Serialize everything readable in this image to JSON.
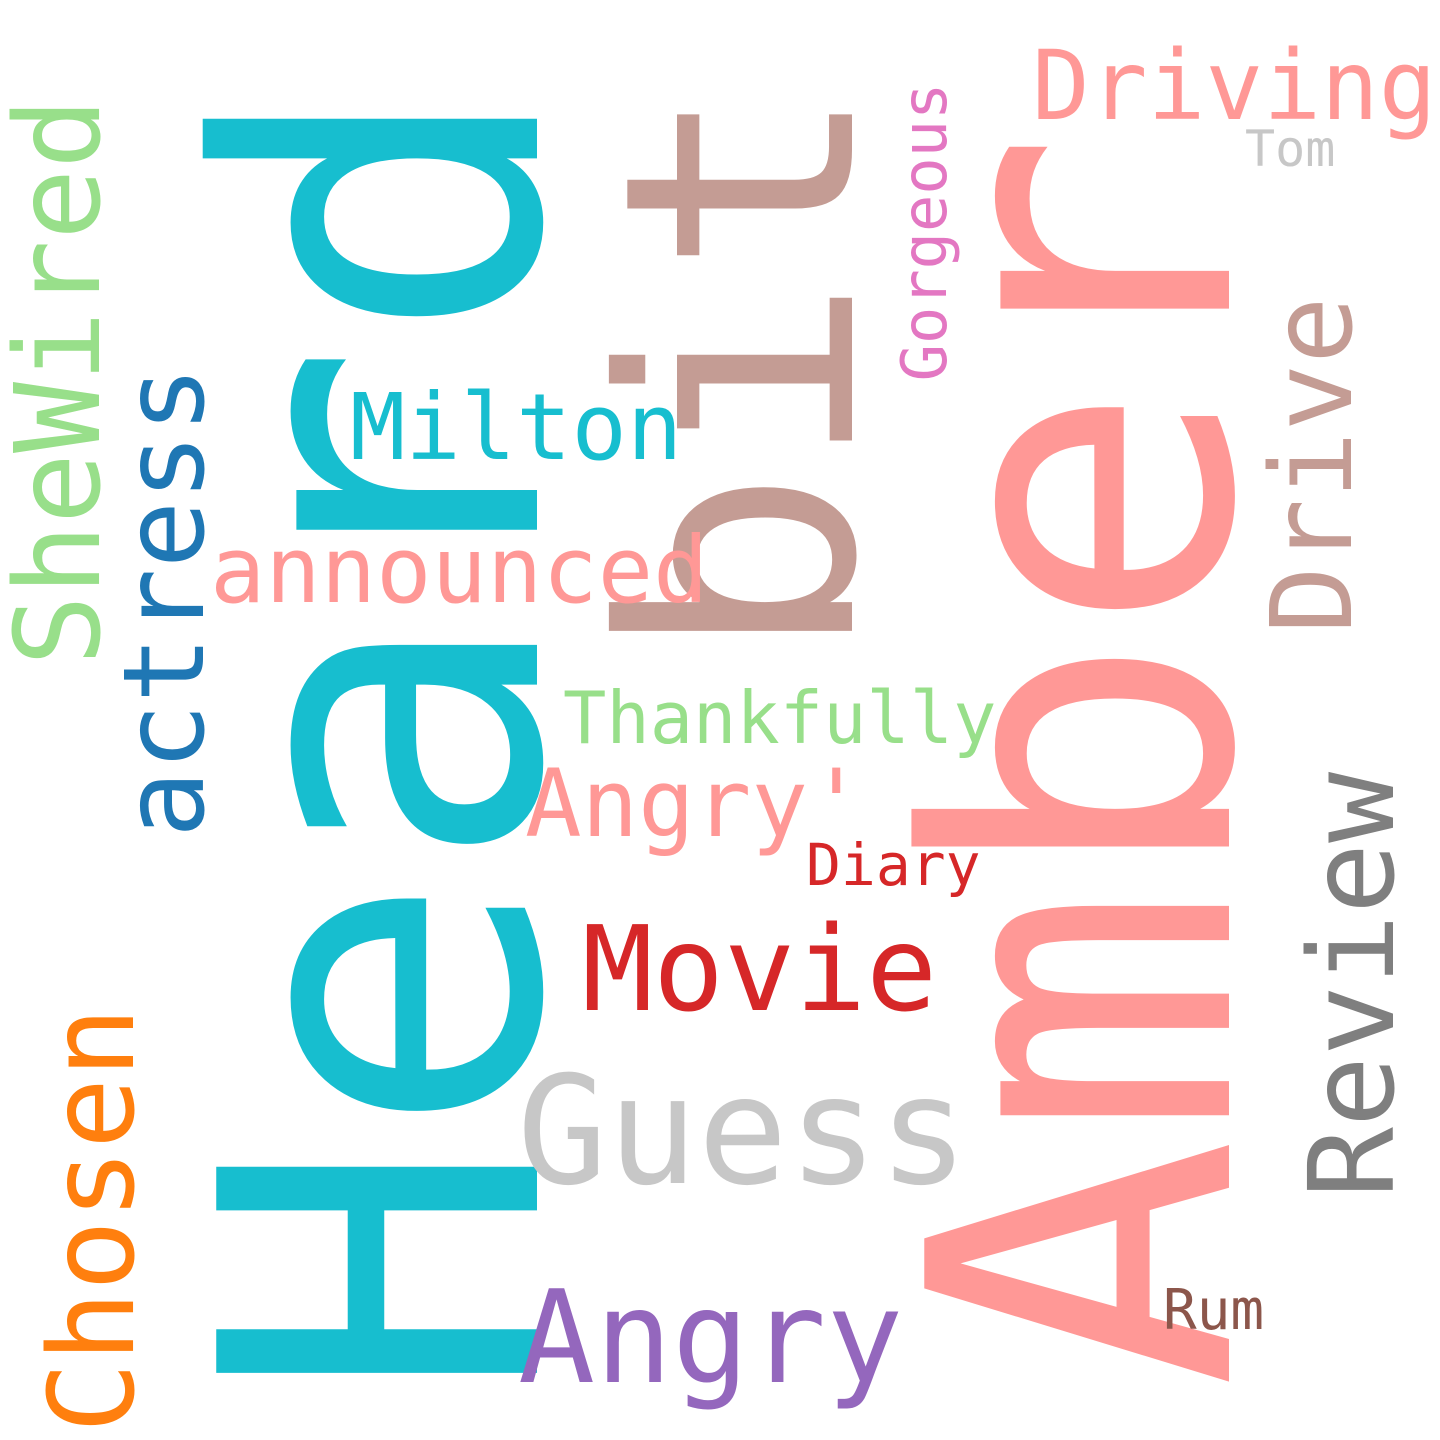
{
  "words": [
    {
      "id": "heard",
      "text": "Heard",
      "color": "#17becf",
      "orientation": "vertical"
    },
    {
      "id": "amber",
      "text": "Amber",
      "color": "#ff9896",
      "orientation": "vertical"
    },
    {
      "id": "bit",
      "text": "bit",
      "color": "#c49c94",
      "orientation": "vertical"
    },
    {
      "id": "driving",
      "text": "Driving",
      "color": "#ff9896",
      "orientation": "horizontal"
    },
    {
      "id": "tom",
      "text": "Tom",
      "color": "#c7c7c7",
      "orientation": "horizontal"
    },
    {
      "id": "gorgeous",
      "text": "Gorgeous",
      "color": "#e377c2",
      "orientation": "vertical"
    },
    {
      "id": "shewired",
      "text": "SheWired",
      "color": "#98df8a",
      "orientation": "vertical"
    },
    {
      "id": "actress",
      "text": "actress",
      "color": "#1f77b4",
      "orientation": "vertical"
    },
    {
      "id": "milton",
      "text": "Milton",
      "color": "#17becf",
      "orientation": "horizontal"
    },
    {
      "id": "drive",
      "text": "Drive",
      "color": "#c49c94",
      "orientation": "vertical"
    },
    {
      "id": "announced",
      "text": "announced",
      "color": "#ff9896",
      "orientation": "horizontal"
    },
    {
      "id": "thankfully",
      "text": "Thankfully",
      "color": "#98df8a",
      "orientation": "horizontal"
    },
    {
      "id": "angry-quote",
      "text": "Angry'",
      "color": "#ff9896",
      "orientation": "horizontal"
    },
    {
      "id": "review",
      "text": "Review",
      "color": "#7f7f7f",
      "orientation": "vertical"
    },
    {
      "id": "diary",
      "text": "Diary",
      "color": "#d62728",
      "orientation": "horizontal"
    },
    {
      "id": "movie",
      "text": "Movie",
      "color": "#d62728",
      "orientation": "horizontal"
    },
    {
      "id": "guess",
      "text": "Guess",
      "color": "#c7c7c7",
      "orientation": "horizontal"
    },
    {
      "id": "chosen",
      "text": "Chosen",
      "color": "#ff7f0e",
      "orientation": "vertical"
    },
    {
      "id": "angry",
      "text": "Angry",
      "color": "#9467bd",
      "orientation": "horizontal"
    },
    {
      "id": "rum",
      "text": "Rum",
      "color": "#8c564b",
      "orientation": "horizontal"
    }
  ]
}
